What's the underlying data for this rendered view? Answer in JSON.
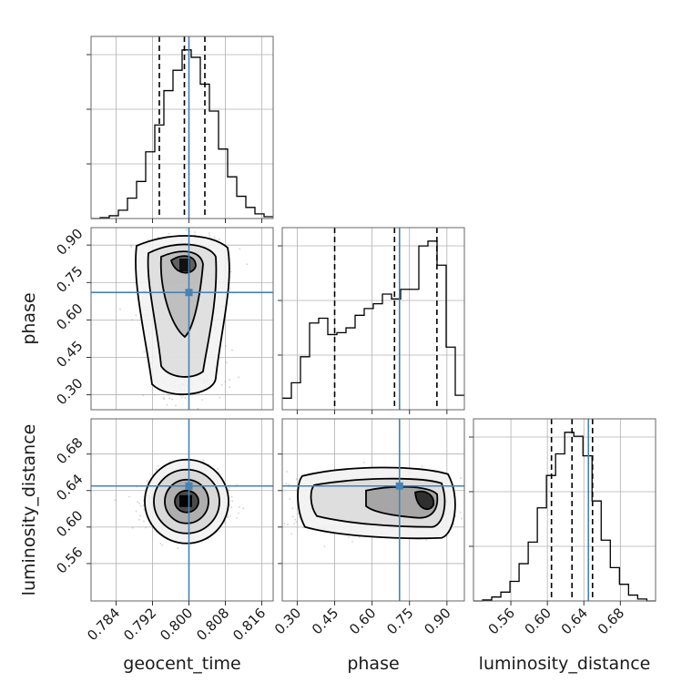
{
  "chart_data": {
    "type": "corner",
    "parameters": [
      "geocent_time",
      "phase",
      "luminosity_distance"
    ],
    "truths": {
      "geocent_time": 0.8,
      "phase": 0.71,
      "luminosity_distance": 0.645
    },
    "axes": {
      "geocent_time": {
        "range": [
          0.7785,
          0.8185
        ],
        "ticks": [
          0.784,
          0.792,
          0.8,
          0.808,
          0.816
        ],
        "tick_labels": [
          "0.784",
          "0.792",
          "0.800",
          "0.808",
          "0.816"
        ]
      },
      "phase": {
        "range": [
          0.24,
          0.97
        ],
        "ticks": [
          0.3,
          0.45,
          0.6,
          0.75,
          0.9
        ],
        "tick_labels": [
          "0.30",
          "0.45",
          "0.60",
          "0.75",
          "0.90"
        ]
      },
      "luminosity_distance": {
        "range": [
          0.519,
          0.7186
        ],
        "ticks": [
          0.56,
          0.6,
          0.64,
          0.68
        ],
        "tick_labels": [
          "0.56",
          "0.60",
          "0.64",
          "0.68"
        ]
      }
    },
    "marginals": [
      {
        "parameter": "geocent_time",
        "quantiles": [
          0.7935,
          0.799,
          0.8035
        ],
        "bin_edges": [
          0.7785,
          0.7805,
          0.7825,
          0.7845,
          0.7865,
          0.7885,
          0.7905,
          0.7925,
          0.7945,
          0.7965,
          0.7985,
          0.8005,
          0.8025,
          0.8045,
          0.8065,
          0.8085,
          0.8105,
          0.8125,
          0.8145,
          0.8165,
          0.8185
        ],
        "counts": [
          0,
          1,
          3,
          9,
          22,
          40,
          72,
          101,
          138,
          160,
          182,
          174,
          145,
          116,
          75,
          45,
          24,
          12,
          5,
          2
        ]
      },
      {
        "parameter": "phase",
        "quantiles": [
          0.45,
          0.69,
          0.86
        ],
        "bin_edges": [
          0.24,
          0.2765,
          0.313,
          0.3495,
          0.386,
          0.4225,
          0.459,
          0.4955,
          0.532,
          0.5685,
          0.605,
          0.6415,
          0.678,
          0.7145,
          0.751,
          0.7875,
          0.824,
          0.8605,
          0.897,
          0.9335,
          0.97
        ],
        "counts": [
          12,
          28,
          55,
          90,
          95,
          78,
          80,
          85,
          98,
          105,
          110,
          120,
          115,
          125,
          125,
          170,
          175,
          150,
          65,
          15
        ]
      },
      {
        "parameter": "luminosity_distance",
        "quantiles": [
          0.6045,
          0.627,
          0.6495
        ],
        "bin_edges": [
          0.519,
          0.529,
          0.539,
          0.549,
          0.559,
          0.569,
          0.579,
          0.589,
          0.599,
          0.609,
          0.619,
          0.629,
          0.639,
          0.649,
          0.659,
          0.669,
          0.679,
          0.689,
          0.699,
          0.709,
          0.719
        ],
        "counts": [
          0,
          1,
          4,
          9,
          20,
          38,
          60,
          95,
          128,
          150,
          172,
          168,
          148,
          102,
          62,
          34,
          17,
          6,
          2,
          0
        ]
      }
    ],
    "joint_panels": [
      {
        "x": "geocent_time",
        "y": "phase",
        "contour_levels": 4
      },
      {
        "x": "geocent_time",
        "y": "luminosity_distance",
        "contour_levels": 4
      },
      {
        "x": "phase",
        "y": "luminosity_distance",
        "contour_levels": 4
      }
    ],
    "xlabel": [
      "geocent_time",
      "phase",
      "luminosity_distance"
    ],
    "ylabel": [
      "phase",
      "luminosity_distance"
    ],
    "grid": true,
    "colors": {
      "truth": "#4682b4",
      "contour": "#000000",
      "hist": "#000000",
      "grid": "#b0b0b0"
    }
  }
}
